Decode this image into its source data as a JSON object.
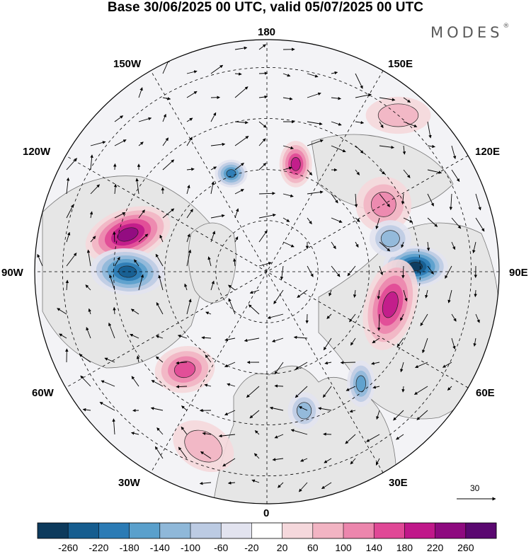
{
  "title": "Base 30/06/2025 00 UTC, valid 05/07/2025 00 UTC",
  "brand": {
    "name": "MODES",
    "mark": "®"
  },
  "longitude_labels": {
    "top": "180",
    "bottom": "0",
    "left": "90W",
    "right": "90E",
    "upper_left_1": "150W",
    "upper_left_2": "120W",
    "upper_right_1": "150E",
    "upper_right_2": "120E",
    "lower_left_1": "60W",
    "lower_left_2": "30W",
    "lower_right_1": "60E",
    "lower_right_2": "30E"
  },
  "vector_scale": {
    "value": "30"
  },
  "colorbar": {
    "ticks": [
      "-260",
      "-220",
      "-180",
      "-140",
      "-100",
      "-60",
      "-20",
      "20",
      "60",
      "100",
      "140",
      "180",
      "220",
      "260"
    ],
    "colors": [
      "#0d3a5c",
      "#165d8f",
      "#2b7bb5",
      "#5aa0cc",
      "#8fb8d9",
      "#bccbe3",
      "#e2e3ef",
      "#ffffff",
      "#f5d8dc",
      "#f2b4c3",
      "#ec86ad",
      "#e04896",
      "#c0188a",
      "#8e0a7f",
      "#5a0870"
    ]
  },
  "map": {
    "projection": "north-polar-stereographic",
    "land_color": "#e6e6e6",
    "anomaly_blobs": [
      {
        "lon": -105,
        "r": 0.62,
        "rx": 0.095,
        "ry": 0.055,
        "rot": -20,
        "level": 13
      },
      {
        "lon": -90,
        "r": 0.6,
        "rx": 0.08,
        "ry": 0.05,
        "rot": 5,
        "level": 1
      },
      {
        "lon": 92,
        "r": 0.64,
        "rx": 0.07,
        "ry": 0.045,
        "rot": 0,
        "level": 0
      },
      {
        "lon": 75,
        "r": 0.55,
        "rx": 0.055,
        "ry": 0.1,
        "rot": 15,
        "level": 12
      },
      {
        "lon": 120,
        "r": 0.58,
        "rx": 0.06,
        "ry": 0.06,
        "rot": 0,
        "level": 10
      },
      {
        "lon": 165,
        "r": 0.48,
        "rx": 0.035,
        "ry": 0.05,
        "rot": 0,
        "level": 12
      },
      {
        "lon": -160,
        "r": 0.45,
        "rx": 0.035,
        "ry": 0.03,
        "rot": 0,
        "level": 2
      },
      {
        "lon": -40,
        "r": 0.55,
        "rx": 0.065,
        "ry": 0.05,
        "rot": -10,
        "level": 11
      },
      {
        "lon": 15,
        "r": 0.62,
        "rx": 0.035,
        "ry": 0.04,
        "rot": 0,
        "level": 4
      },
      {
        "lon": 40,
        "r": 0.63,
        "rx": 0.03,
        "ry": 0.05,
        "rot": 0,
        "level": 3
      },
      {
        "lon": -20,
        "r": 0.8,
        "rx": 0.07,
        "ry": 0.05,
        "rot": 30,
        "level": 9
      },
      {
        "lon": 140,
        "r": 0.88,
        "rx": 0.07,
        "ry": 0.04,
        "rot": 0,
        "level": 9
      },
      {
        "lon": 105,
        "r": 0.55,
        "rx": 0.045,
        "ry": 0.04,
        "rot": 0,
        "level": 4
      }
    ]
  }
}
